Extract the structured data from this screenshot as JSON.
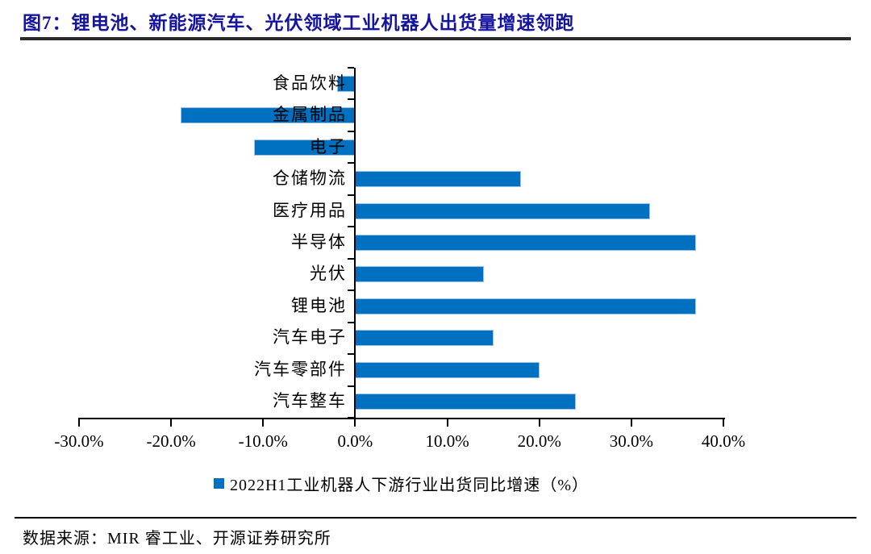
{
  "figure": {
    "title": "图7：锂电池、新能源汽车、光伏领域工业机器人出货量增速领跑",
    "source_note": "数据来源：MIR 睿工业、开源证券研究所"
  },
  "colors": {
    "bar_fill": "#0070C0",
    "bar_border": "#9DC3E6",
    "title_text": "#14149E",
    "axis": "#000000"
  },
  "chart_data": {
    "type": "bar",
    "orientation": "horizontal",
    "title": "图7：锂电池、新能源汽车、光伏领域工业机器人出货量增速领跑",
    "categories": [
      "食品饮料",
      "金属制品",
      "电子",
      "仓储物流",
      "医疗用品",
      "半导体",
      "光伏",
      "锂电池",
      "汽车电子",
      "汽车零部件",
      "汽车整车"
    ],
    "values": [
      -2.0,
      -19.0,
      -11.0,
      18.0,
      32.0,
      37.0,
      14.0,
      37.0,
      15.0,
      20.0,
      24.0
    ],
    "unit": "%",
    "xlim": [
      -30,
      40
    ],
    "x_ticks": [
      -30,
      -20,
      -10,
      0,
      10,
      20,
      30,
      40
    ],
    "x_tick_labels": [
      "-30.0%",
      "-20.0%",
      "-10.0%",
      "0.0%",
      "10.0%",
      "20.0%",
      "30.0%",
      "40.0%"
    ],
    "legend": [
      "2022H1工业机器人下游行业出货同比增速（%）"
    ],
    "legend_position": "bottom",
    "grid": false
  }
}
